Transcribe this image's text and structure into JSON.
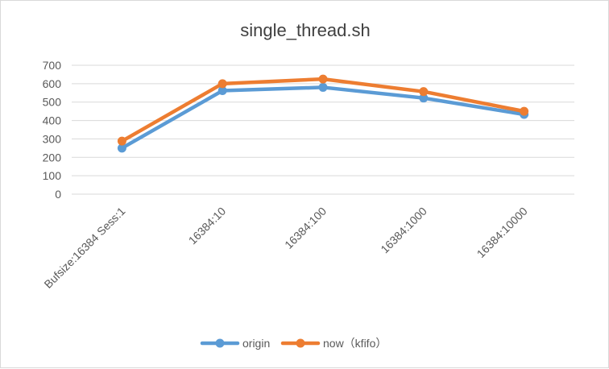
{
  "chart_data": {
    "type": "line",
    "title": "single_thread.sh",
    "categories": [
      "Bufsize:16384  Sess:1",
      "16384:10",
      "16384:100",
      "16384:1000",
      "16384:10000"
    ],
    "ylim": [
      0,
      700
    ],
    "yticks": [
      0,
      100,
      200,
      300,
      400,
      500,
      600,
      700
    ],
    "grid": true,
    "legend_position": "bottom",
    "series": [
      {
        "name": "origin",
        "color": "#5b9bd5",
        "values": [
          250,
          562,
          580,
          522,
          433
        ]
      },
      {
        "name": "now（kfifo）",
        "color": "#ed7d31",
        "values": [
          288,
          600,
          625,
          557,
          450
        ]
      }
    ]
  }
}
